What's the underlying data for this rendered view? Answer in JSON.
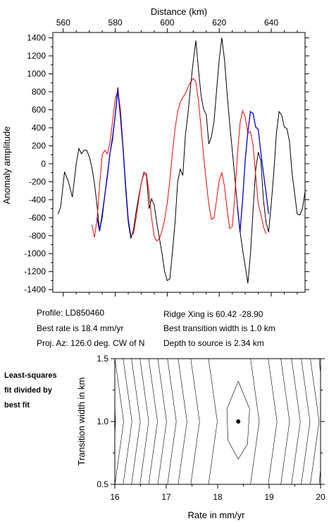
{
  "colors": {
    "data_curve": "#000000",
    "model_curve": "#ff0000",
    "fit_segment": "#0000cc",
    "axis": "#000000",
    "contour": "#000000"
  },
  "profile_label": "Profile: LD850460",
  "best_rate_label": "Best rate is 18.4 mm/yr",
  "proj_az_label": "Proj. Az: 126.0 deg. CW of N",
  "ridge_xing_label": "Ridge Xing is 60.42 -28.90",
  "best_width_label": "Best transition width is 1.0 km",
  "depth_label": "Depth to source is   2.34 km",
  "side_note": [
    "Least-squares",
    "fit divided by",
    "best fit"
  ],
  "chart_data": [
    {
      "type": "line",
      "title": "",
      "xlabel": "Distance (km)",
      "ylabel": "Anomaly amplitude",
      "xlim": [
        556,
        653
      ],
      "ylim": [
        -1430,
        1460
      ],
      "xticks": [
        560,
        580,
        600,
        620,
        640
      ],
      "yticks": [
        -1400,
        -1200,
        -1000,
        -800,
        -600,
        -400,
        -200,
        0,
        200,
        400,
        600,
        800,
        1000,
        1200,
        1400
      ],
      "x_axis_position": "top",
      "grid": false,
      "series": [
        {
          "role": "data",
          "color": "#000000",
          "points": [
            [
              558,
              -560
            ],
            [
              559,
              -480
            ],
            [
              560.5,
              -90
            ],
            [
              562,
              -200
            ],
            [
              563.5,
              -370
            ],
            [
              565,
              0
            ],
            [
              566,
              170
            ],
            [
              567,
              110
            ],
            [
              568,
              150
            ],
            [
              569,
              150
            ],
            [
              570,
              80
            ],
            [
              571,
              -40
            ],
            [
              572,
              -220
            ],
            [
              573,
              -460
            ],
            [
              574,
              -740
            ],
            [
              575,
              -600
            ],
            [
              576,
              -350
            ],
            [
              577,
              -140
            ],
            [
              578,
              120
            ],
            [
              579,
              270
            ],
            [
              580,
              550
            ],
            [
              581,
              850
            ],
            [
              582,
              520
            ],
            [
              583,
              180
            ],
            [
              584,
              -280
            ],
            [
              585,
              -650
            ],
            [
              586,
              -830
            ],
            [
              587,
              -740
            ],
            [
              588,
              -540
            ],
            [
              589,
              -370
            ],
            [
              590,
              -220
            ],
            [
              591,
              -110
            ],
            [
              592,
              -130
            ],
            [
              593,
              -500
            ],
            [
              594,
              -390
            ],
            [
              595,
              -460
            ],
            [
              596,
              -660
            ],
            [
              597,
              -830
            ],
            [
              598,
              -1000
            ],
            [
              599,
              -1200
            ],
            [
              600,
              -1300
            ],
            [
              601,
              -1280
            ],
            [
              602,
              -980
            ],
            [
              603,
              -650
            ],
            [
              604,
              -200
            ],
            [
              605,
              -60
            ],
            [
              606,
              -130
            ],
            [
              607,
              320
            ],
            [
              608,
              560
            ],
            [
              609,
              870
            ],
            [
              610,
              1140
            ],
            [
              611,
              1370
            ],
            [
              612,
              1050
            ],
            [
              613,
              760
            ],
            [
              614,
              600
            ],
            [
              615,
              550
            ],
            [
              616,
              220
            ],
            [
              617,
              300
            ],
            [
              618,
              470
            ],
            [
              619,
              820
            ],
            [
              620,
              1160
            ],
            [
              621,
              1400
            ],
            [
              622,
              1160
            ],
            [
              623,
              790
            ],
            [
              624,
              450
            ],
            [
              625,
              150
            ],
            [
              626,
              -160
            ],
            [
              627,
              -470
            ],
            [
              628,
              -750
            ],
            [
              629,
              -960
            ],
            [
              630,
              -1140
            ],
            [
              631,
              -1330
            ],
            [
              632,
              -1010
            ],
            [
              633,
              -520
            ],
            [
              634,
              -70
            ],
            [
              635,
              130
            ],
            [
              636,
              30
            ],
            [
              637,
              -400
            ],
            [
              638,
              -650
            ],
            [
              639,
              -760
            ],
            [
              640,
              -450
            ],
            [
              641,
              -90
            ],
            [
              642,
              340
            ],
            [
              643,
              580
            ],
            [
              644,
              540
            ],
            [
              645,
              410
            ],
            [
              646,
              390
            ],
            [
              647,
              250
            ],
            [
              648,
              -100
            ],
            [
              649,
              -330
            ],
            [
              650,
              -560
            ],
            [
              651,
              -570
            ],
            [
              652,
              -500
            ],
            [
              653,
              -310
            ],
            [
              654,
              -160
            ],
            [
              655,
              -100
            ],
            [
              656,
              -60
            ],
            [
              657,
              0
            ],
            [
              658,
              50
            ],
            [
              659,
              -180
            ]
          ]
        },
        {
          "role": "model",
          "color": "#ff0000",
          "points": [
            [
              571,
              -680
            ],
            [
              572,
              -820
            ],
            [
              573,
              -620
            ],
            [
              574,
              -240
            ],
            [
              575,
              100
            ],
            [
              576,
              150
            ],
            [
              577,
              110
            ],
            [
              578,
              240
            ],
            [
              579,
              480
            ],
            [
              580,
              720
            ],
            [
              581,
              820
            ],
            [
              582,
              600
            ],
            [
              583,
              200
            ],
            [
              584,
              -250
            ],
            [
              585,
              -620
            ],
            [
              586,
              -800
            ],
            [
              587,
              -780
            ],
            [
              588,
              -610
            ],
            [
              589,
              -400
            ],
            [
              590,
              -220
            ],
            [
              591,
              -90
            ],
            [
              592,
              -110
            ],
            [
              593,
              -330
            ],
            [
              594,
              -600
            ],
            [
              595,
              -810
            ],
            [
              596,
              -860
            ],
            [
              597,
              -830
            ],
            [
              598,
              -750
            ],
            [
              599,
              -620
            ],
            [
              600,
              -440
            ],
            [
              601,
              -180
            ],
            [
              602,
              120
            ],
            [
              603,
              390
            ],
            [
              604,
              580
            ],
            [
              605,
              680
            ],
            [
              606,
              740
            ],
            [
              607,
              780
            ],
            [
              608,
              850
            ],
            [
              609,
              910
            ],
            [
              610,
              950
            ],
            [
              611,
              910
            ],
            [
              612,
              700
            ],
            [
              613,
              400
            ],
            [
              614,
              80
            ],
            [
              615,
              -200
            ],
            [
              616,
              -450
            ],
            [
              617,
              -620
            ],
            [
              618,
              -600
            ],
            [
              619,
              -400
            ],
            [
              620,
              -180
            ],
            [
              621,
              -100
            ],
            [
              622,
              -250
            ],
            [
              623,
              -500
            ],
            [
              624,
              -720
            ],
            [
              625,
              -700
            ],
            [
              626,
              -350
            ],
            [
              627,
              100
            ],
            [
              628,
              450
            ],
            [
              629,
              590
            ],
            [
              630,
              520
            ],
            [
              631,
              340
            ],
            [
              632,
              360
            ],
            [
              633,
              210
            ],
            [
              634,
              -130
            ],
            [
              635,
              -450
            ],
            [
              636,
              -560
            ],
            [
              637,
              -700
            ],
            [
              638,
              -780
            ]
          ]
        },
        {
          "role": "fit",
          "color": "#0000cc",
          "points": [
            [
              573,
              -600
            ],
            [
              574,
              -750
            ],
            [
              575,
              -560
            ],
            [
              576,
              -350
            ],
            [
              577,
              -120
            ],
            [
              578,
              120
            ],
            [
              579,
              300
            ],
            [
              580,
              540
            ],
            [
              581,
              820
            ],
            [
              582,
              520
            ],
            [
              583,
              180
            ],
            [
              584,
              -240
            ],
            [
              585,
              -620
            ],
            [
              586,
              -810
            ]
          ]
        },
        {
          "role": "fit",
          "color": "#0000cc",
          "points": [
            [
              627,
              -480
            ],
            [
              628,
              -760
            ],
            [
              629,
              -400
            ],
            [
              630,
              40
            ],
            [
              631,
              350
            ],
            [
              632,
              580
            ],
            [
              633,
              560
            ],
            [
              634,
              410
            ],
            [
              635,
              380
            ],
            [
              636,
              120
            ],
            [
              637,
              -100
            ],
            [
              638,
              -320
            ],
            [
              639,
              -560
            ]
          ]
        }
      ]
    },
    {
      "type": "contour",
      "title": "",
      "xlabel": "Rate in mm/yr",
      "ylabel": "Transition width in km",
      "xlim": [
        16,
        20
      ],
      "ylim": [
        0.5,
        1.5
      ],
      "xticks": [
        16,
        17,
        18,
        19,
        20
      ],
      "yticks": [
        0.5,
        1.0,
        1.5
      ],
      "best_fit": {
        "rate": 18.4,
        "width": 1.0
      },
      "grid": false
    }
  ]
}
